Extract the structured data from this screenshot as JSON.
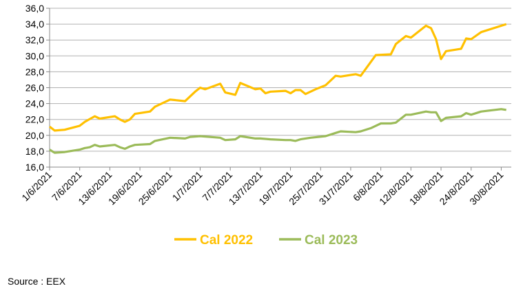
{
  "chart_data": {
    "type": "line",
    "x_tick_labels": [
      "1/6/2021",
      "7/6/2021",
      "13/6/2021",
      "19/6/2021",
      "25/6/2021",
      "1/7/2021",
      "7/7/2021",
      "13/7/2021",
      "19/7/2021",
      "25/7/2021",
      "31/7/2021",
      "6/8/2021",
      "12/8/2021",
      "18/8/2021",
      "24/8/2021",
      "30/8/2021"
    ],
    "x_tick_day_offsets": [
      0,
      6,
      12,
      18,
      24,
      30,
      36,
      42,
      48,
      54,
      60,
      66,
      72,
      78,
      84,
      90
    ],
    "x_range_days": [
      0,
      92
    ],
    "y_tick_labels": [
      "16,0",
      "18,0",
      "20,0",
      "22,0",
      "24,0",
      "26,0",
      "28,0",
      "30,0",
      "32,0",
      "34,0",
      "36,0"
    ],
    "ylim": [
      16,
      36
    ],
    "grid": "horizontal",
    "legend_position": "bottom",
    "series": [
      {
        "name": "Cal 2022",
        "color": "#FFC000",
        "points": [
          [
            0,
            21.1
          ],
          [
            1,
            20.6
          ],
          [
            3,
            20.7
          ],
          [
            6,
            21.2
          ],
          [
            7,
            21.7
          ],
          [
            9,
            22.4
          ],
          [
            10,
            22.1
          ],
          [
            13,
            22.4
          ],
          [
            14,
            22.0
          ],
          [
            15,
            21.7
          ],
          [
            16,
            22.0
          ],
          [
            17,
            22.7
          ],
          [
            20,
            23.0
          ],
          [
            21,
            23.6
          ],
          [
            24,
            24.5
          ],
          [
            27,
            24.3
          ],
          [
            29,
            25.5
          ],
          [
            30,
            26.0
          ],
          [
            31,
            25.8
          ],
          [
            34,
            26.5
          ],
          [
            35,
            25.4
          ],
          [
            37,
            25.1
          ],
          [
            38,
            26.6
          ],
          [
            41,
            25.8
          ],
          [
            42,
            25.9
          ],
          [
            43,
            25.3
          ],
          [
            44,
            25.5
          ],
          [
            47,
            25.6
          ],
          [
            48,
            25.3
          ],
          [
            49,
            25.7
          ],
          [
            50,
            25.7
          ],
          [
            51,
            25.2
          ],
          [
            53,
            25.8
          ],
          [
            55,
            26.3
          ],
          [
            57,
            27.5
          ],
          [
            58,
            27.4
          ],
          [
            61,
            27.7
          ],
          [
            62,
            27.5
          ],
          [
            65,
            30.1
          ],
          [
            68,
            30.2
          ],
          [
            69,
            31.5
          ],
          [
            71,
            32.5
          ],
          [
            72,
            32.3
          ],
          [
            75,
            33.8
          ],
          [
            76,
            33.5
          ],
          [
            77,
            32.1
          ],
          [
            78,
            29.6
          ],
          [
            79,
            30.6
          ],
          [
            82,
            30.9
          ],
          [
            83,
            32.2
          ],
          [
            84,
            32.1
          ],
          [
            86,
            33.0
          ],
          [
            91,
            34.0
          ]
        ]
      },
      {
        "name": "Cal 2023",
        "color": "#9BBB59",
        "points": [
          [
            0,
            18.2
          ],
          [
            1,
            17.8
          ],
          [
            3,
            17.9
          ],
          [
            6,
            18.2
          ],
          [
            7,
            18.4
          ],
          [
            8,
            18.5
          ],
          [
            9,
            18.8
          ],
          [
            10,
            18.6
          ],
          [
            13,
            18.8
          ],
          [
            14,
            18.5
          ],
          [
            15,
            18.3
          ],
          [
            16,
            18.6
          ],
          [
            17,
            18.8
          ],
          [
            20,
            18.9
          ],
          [
            21,
            19.3
          ],
          [
            24,
            19.7
          ],
          [
            27,
            19.6
          ],
          [
            28,
            19.8
          ],
          [
            30,
            19.9
          ],
          [
            34,
            19.7
          ],
          [
            35,
            19.4
          ],
          [
            37,
            19.5
          ],
          [
            38,
            19.9
          ],
          [
            41,
            19.6
          ],
          [
            42,
            19.6
          ],
          [
            44,
            19.5
          ],
          [
            47,
            19.4
          ],
          [
            48,
            19.4
          ],
          [
            49,
            19.3
          ],
          [
            50,
            19.5
          ],
          [
            52,
            19.7
          ],
          [
            55,
            19.9
          ],
          [
            57,
            20.3
          ],
          [
            58,
            20.5
          ],
          [
            61,
            20.4
          ],
          [
            62,
            20.5
          ],
          [
            64,
            20.9
          ],
          [
            66,
            21.5
          ],
          [
            68,
            21.5
          ],
          [
            69,
            21.6
          ],
          [
            71,
            22.6
          ],
          [
            72,
            22.6
          ],
          [
            75,
            23.0
          ],
          [
            76,
            22.9
          ],
          [
            77,
            22.9
          ],
          [
            78,
            21.8
          ],
          [
            79,
            22.2
          ],
          [
            82,
            22.4
          ],
          [
            83,
            22.8
          ],
          [
            84,
            22.6
          ],
          [
            86,
            23.0
          ],
          [
            90,
            23.3
          ],
          [
            91,
            23.2
          ]
        ]
      }
    ]
  },
  "source_text": "Source : EEX"
}
